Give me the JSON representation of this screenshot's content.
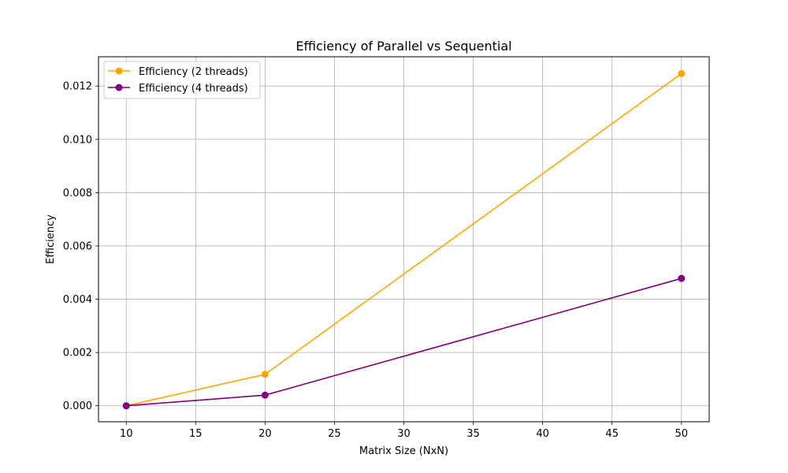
{
  "chart_data": {
    "type": "line",
    "title": "Efficiency of Parallel vs Sequential",
    "xlabel": "Matrix Size (NxN)",
    "ylabel": "Efficiency",
    "x": [
      10,
      20,
      50
    ],
    "xlim": [
      8,
      52
    ],
    "ylim": [
      -0.0006,
      0.0131
    ],
    "xticks": [
      10,
      15,
      20,
      25,
      30,
      35,
      40,
      45,
      50
    ],
    "yticks": [
      0.0,
      0.002,
      0.004,
      0.006,
      0.008,
      0.01,
      0.012
    ],
    "xtick_labels": [
      "10",
      "15",
      "20",
      "25",
      "30",
      "35",
      "40",
      "45",
      "50"
    ],
    "ytick_labels": [
      "0.000",
      "0.002",
      "0.004",
      "0.006",
      "0.008",
      "0.010",
      "0.012"
    ],
    "grid": true,
    "legend_position": "top-left",
    "series": [
      {
        "name": "Efficiency (2 threads)",
        "color": "#ffa500",
        "marker": "circle",
        "values": [
          0.0,
          0.00118,
          0.01247
        ]
      },
      {
        "name": "Efficiency (4 threads)",
        "color": "#800080",
        "marker": "circle",
        "values": [
          0.0,
          0.0004,
          0.00478
        ]
      }
    ]
  }
}
